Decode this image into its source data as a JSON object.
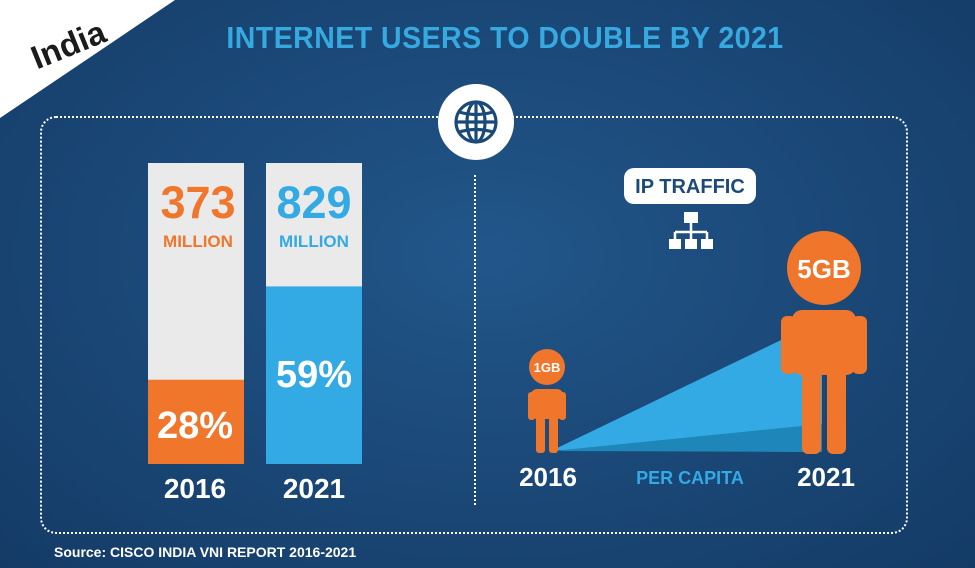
{
  "corner_label": "India",
  "title": "INTERNET USERS TO DOUBLE BY 2021",
  "source": "Source: CISCO INDIA VNI REPORT 2016-2021",
  "colors": {
    "orange": "#f0762c",
    "blue": "#33aae3",
    "grey": "#eaeaea",
    "title": "#35a9e0",
    "background": "#1b4a78"
  },
  "icons": [
    "globe-icon",
    "network-icon",
    "person-icon"
  ],
  "chart_data": [
    {
      "type": "bar",
      "categories": [
        "2016",
        "2021"
      ],
      "series": [
        {
          "values": [
            28,
            59
          ],
          "unit": "%",
          "labels": [
            "28%",
            "59%"
          ]
        }
      ],
      "totals": [
        {
          "value": "373",
          "unit": "MILLION"
        },
        {
          "value": "829",
          "unit": "MILLION"
        }
      ],
      "ylim": [
        0,
        100
      ],
      "bar_colors": [
        "#f0762c",
        "#33aae3"
      ]
    },
    {
      "type": "area",
      "title": "IP TRAFFIC",
      "xlabel": "PER CAPITA",
      "categories": [
        "2016",
        "2021"
      ],
      "values": [
        1,
        5
      ],
      "value_labels": [
        "1GB",
        "5GB"
      ],
      "unit": "GB"
    }
  ]
}
